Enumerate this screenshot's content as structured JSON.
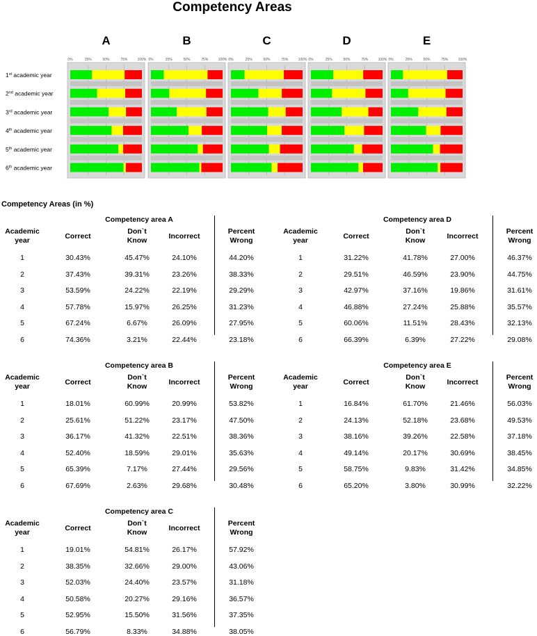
{
  "title": "Competency Areas",
  "tables_title": "Competency Areas (in %)",
  "chart_data": {
    "type": "bar",
    "stacked": true,
    "orientation": "horizontal",
    "title": "Competency Areas",
    "panels": [
      "A",
      "B",
      "C",
      "D",
      "E"
    ],
    "row_labels": [
      {
        "num": "1",
        "sup": "st",
        "rest": " academic year"
      },
      {
        "num": "2",
        "sup": "nd",
        "rest": " academic year"
      },
      {
        "num": "3",
        "sup": "rd",
        "rest": " academic year"
      },
      {
        "num": "4",
        "sup": "th",
        "rest": " academic year"
      },
      {
        "num": "5",
        "sup": "th",
        "rest": " academic year"
      },
      {
        "num": "6",
        "sup": "th",
        "rest": " academic year"
      }
    ],
    "ticks": [
      "0%",
      "25%",
      "50%",
      "75%",
      "100%"
    ],
    "xlim": [
      0,
      100
    ],
    "colors": {
      "correct": "#00ee00",
      "dont_know": "#ffff00",
      "incorrect": "#ff0000",
      "panel": "#d9d9d9",
      "row_band": "#c4c4c4",
      "border": "#bfbfbf"
    }
  },
  "table_headers": {
    "year_l1": "Academic",
    "year_l2": "year",
    "correct": "Correct",
    "dk_l1": "Don`t",
    "dk_l2": "Know",
    "incorrect": "Incorrect",
    "pw_l1": "Percent",
    "pw_l2": "Wrong"
  },
  "tables": [
    {
      "id": "A",
      "caption": "Competency area A",
      "rows": [
        [
          "1",
          "30.43%",
          "45.47%",
          "24.10%",
          "44.20%"
        ],
        [
          "2",
          "37.43%",
          "39.31%",
          "23.26%",
          "38.33%"
        ],
        [
          "3",
          "53.59%",
          "24.22%",
          "22.19%",
          "29.29%"
        ],
        [
          "4",
          "57.78%",
          "15.97%",
          "26.25%",
          "31.23%"
        ],
        [
          "5",
          "67.24%",
          "6.67%",
          "26.09%",
          "27.95%"
        ],
        [
          "6",
          "74.36%",
          "3.21%",
          "22.44%",
          "23.18%"
        ]
      ]
    },
    {
      "id": "B",
      "caption": "Competency area B",
      "rows": [
        [
          "1",
          "18.01%",
          "60.99%",
          "20.99%",
          "53.82%"
        ],
        [
          "2",
          "25.61%",
          "51.22%",
          "23.17%",
          "47.50%"
        ],
        [
          "3",
          "36.17%",
          "41.32%",
          "22.51%",
          "38.36%"
        ],
        [
          "4",
          "52.40%",
          "18.59%",
          "29.01%",
          "35.63%"
        ],
        [
          "5",
          "65.39%",
          "7.17%",
          "27.44%",
          "29.56%"
        ],
        [
          "6",
          "67.69%",
          "2.63%",
          "29.68%",
          "30.48%"
        ]
      ]
    },
    {
      "id": "C",
      "caption": "Competency area C",
      "rows": [
        [
          "1",
          "19.01%",
          "54.81%",
          "26.17%",
          "57.92%"
        ],
        [
          "2",
          "38.35%",
          "32.66%",
          "29.00%",
          "43.06%"
        ],
        [
          "3",
          "52.03%",
          "24.40%",
          "23.57%",
          "31.18%"
        ],
        [
          "4",
          "50.58%",
          "20.27%",
          "29.16%",
          "36.57%"
        ],
        [
          "5",
          "52.95%",
          "15.50%",
          "31.56%",
          "37.35%"
        ],
        [
          "6",
          "56.79%",
          "8.33%",
          "34.88%",
          "38.05%"
        ]
      ]
    },
    {
      "id": "D",
      "caption": "Competency area D",
      "rows": [
        [
          "1",
          "31.22%",
          "41.78%",
          "27.00%",
          "46.37%"
        ],
        [
          "2",
          "29.51%",
          "46.59%",
          "23.90%",
          "44.75%"
        ],
        [
          "3",
          "42.97%",
          "37.16%",
          "19.86%",
          "31.61%"
        ],
        [
          "4",
          "46.88%",
          "27.24%",
          "25.88%",
          "35.57%"
        ],
        [
          "5",
          "60.06%",
          "11.51%",
          "28.43%",
          "32.13%"
        ],
        [
          "6",
          "66.39%",
          "6.39%",
          "27.22%",
          "29.08%"
        ]
      ]
    },
    {
      "id": "E",
      "caption": "Competency area E",
      "rows": [
        [
          "1",
          "16.84%",
          "61.70%",
          "21.46%",
          "56.03%"
        ],
        [
          "2",
          "24.13%",
          "52.18%",
          "23.68%",
          "49.53%"
        ],
        [
          "3",
          "38.16%",
          "39.26%",
          "22.58%",
          "37.18%"
        ],
        [
          "4",
          "49.14%",
          "20.17%",
          "30.69%",
          "38.45%"
        ],
        [
          "5",
          "58.75%",
          "9.83%",
          "31.42%",
          "34.85%"
        ],
        [
          "6",
          "65.20%",
          "3.80%",
          "30.99%",
          "32.22%"
        ]
      ]
    }
  ]
}
